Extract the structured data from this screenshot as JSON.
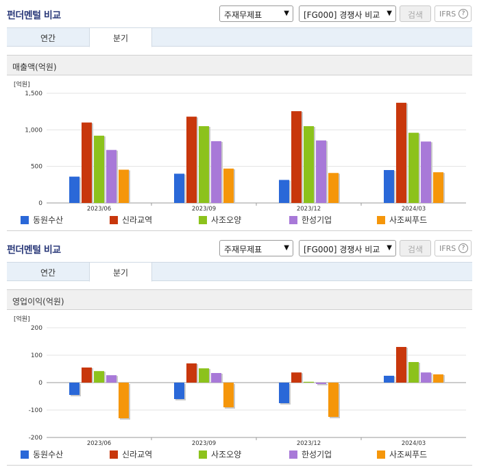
{
  "panels": [
    {
      "header": {
        "title": "펀더멘털 비교",
        "statement_select": "주재무제표",
        "compare_select": "[FG000] 경쟁사 비교",
        "search_label": "검색",
        "ifrs_label": "IFRS",
        "help_glyph": "?"
      },
      "tabs": [
        {
          "label": "연간",
          "active": false
        },
        {
          "label": "분기",
          "active": true
        }
      ],
      "chart_title": "매출액(억원)"
    },
    {
      "header": {
        "title": "펀더멘털 비교",
        "statement_select": "주재무제표",
        "compare_select": "[FG000] 경쟁사 비교",
        "search_label": "검색",
        "ifrs_label": "IFRS",
        "help_glyph": "?"
      },
      "tabs": [
        {
          "label": "연간",
          "active": false
        },
        {
          "label": "분기",
          "active": true
        }
      ],
      "chart_title": "영업이익(억원)"
    }
  ],
  "colors": {
    "동원수산": "#2a68d8",
    "신라교역": "#c8370c",
    "사조오양": "#8cc21c",
    "한성기업": "#a879d8",
    "사조씨푸드": "#f5960a",
    "bar_shadow": "#c9c9c9",
    "grid": "#e3e3e3"
  },
  "chart_data": [
    {
      "type": "bar",
      "ylabel": "[억원]",
      "ylim": [
        0,
        1500
      ],
      "yticks": [
        0,
        500,
        1000,
        1500
      ],
      "ytick_labels": [
        "0",
        "500",
        "1,000",
        "1,500"
      ],
      "categories": [
        "2023/06",
        "2023/09",
        "2023/12",
        "2024/03"
      ],
      "series": [
        {
          "name": "동원수산",
          "values": [
            360,
            400,
            315,
            450
          ]
        },
        {
          "name": "신라교역",
          "values": [
            1100,
            1180,
            1255,
            1370
          ]
        },
        {
          "name": "사조오양",
          "values": [
            920,
            1050,
            1050,
            960
          ]
        },
        {
          "name": "한성기업",
          "values": [
            725,
            845,
            855,
            840
          ]
        },
        {
          "name": "사조씨푸드",
          "values": [
            455,
            470,
            410,
            420
          ]
        }
      ],
      "legend": "bottom"
    },
    {
      "type": "bar",
      "ylabel": "[억원]",
      "ylim": [
        -200,
        200
      ],
      "yticks": [
        -200,
        -100,
        0,
        100,
        200
      ],
      "ytick_labels": [
        "-200",
        "-100",
        "0",
        "100",
        "200"
      ],
      "categories": [
        "2023/06",
        "2023/09",
        "2023/12",
        "2024/03"
      ],
      "series": [
        {
          "name": "동원수산",
          "values": [
            -45,
            -60,
            -75,
            25
          ]
        },
        {
          "name": "신라교역",
          "values": [
            55,
            70,
            37,
            130
          ]
        },
        {
          "name": "사조오양",
          "values": [
            42,
            52,
            3,
            75
          ]
        },
        {
          "name": "한성기업",
          "values": [
            27,
            35,
            -5,
            37
          ]
        },
        {
          "name": "사조씨푸드",
          "values": [
            -130,
            -90,
            -125,
            30
          ]
        }
      ],
      "legend": "bottom"
    }
  ]
}
